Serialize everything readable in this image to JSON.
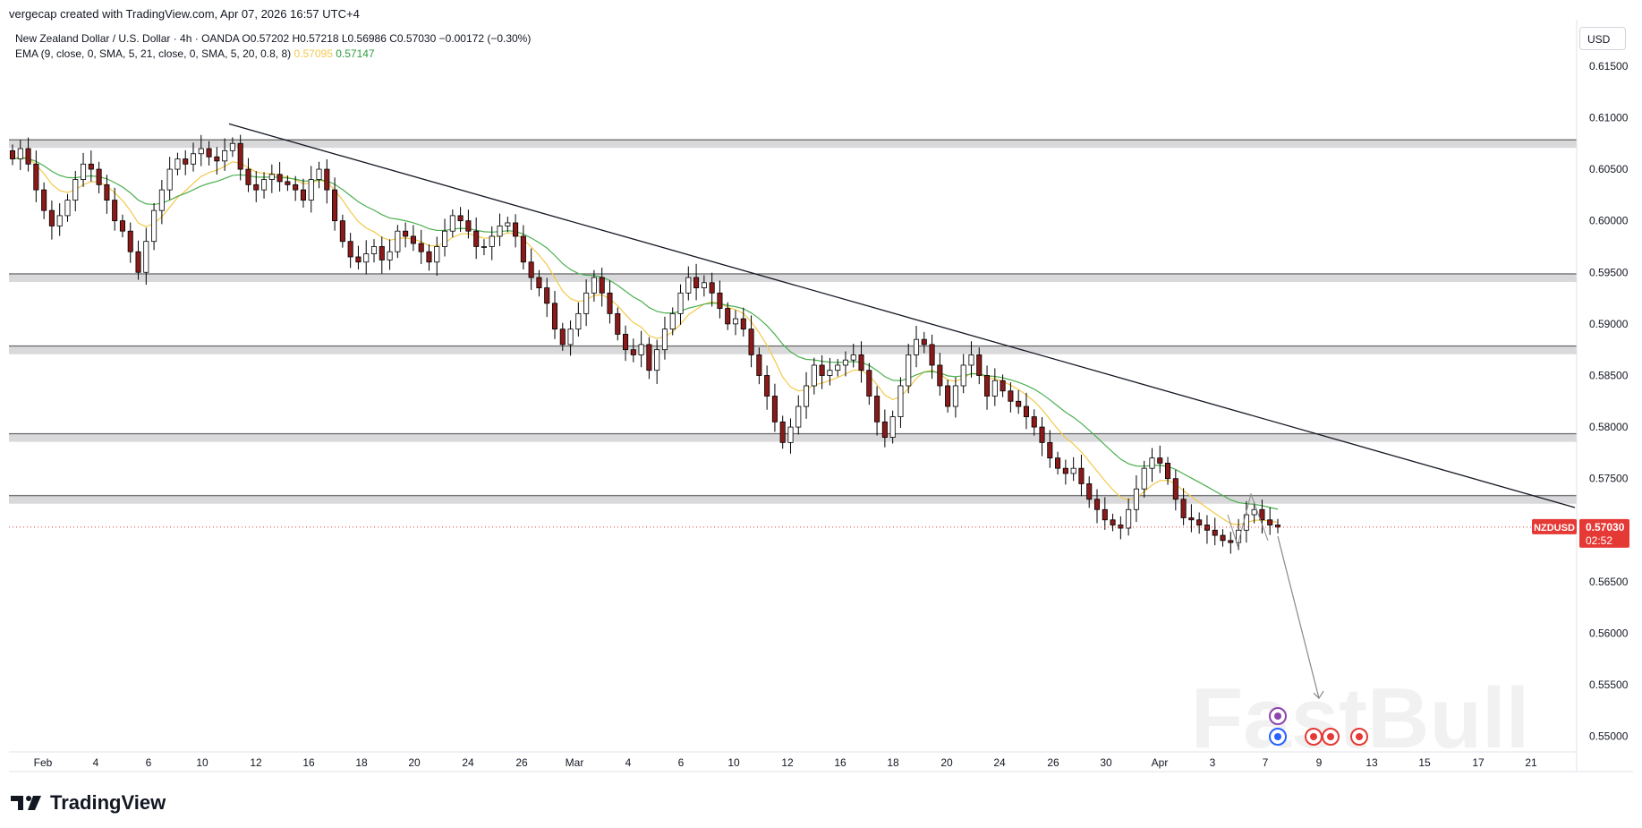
{
  "header": {
    "credit": "vergecap created with TradingView.com, Apr 07, 2026 16:57 UTC+4",
    "symbol_line": "New Zealand Dollar / U.S. Dollar · 4h · OANDA  O0.57202  H0.57218  L0.56986  C0.57030  −0.00172 (−0.30%)",
    "ema_line_prefix": "EMA (9, close, 0, SMA, 5, 21, close, 0, SMA, 5, 20, 0.8, 8)",
    "ema_fast": "0.57095",
    "ema_slow": "0.57147",
    "currency": "USD"
  },
  "footer": {
    "brand": "TradingView"
  },
  "watermark": "FastBull",
  "chart_data": {
    "type": "candlestick",
    "symbol": "NZDUSD",
    "timeframe": "4h",
    "ylim": [
      0.5485,
      0.6195
    ],
    "y_ticks": [
      "0.61500",
      "0.61000",
      "0.60500",
      "0.60000",
      "0.59500",
      "0.59000",
      "0.58500",
      "0.58000",
      "0.57500",
      "0.57000",
      "0.56500",
      "0.56000",
      "0.55500",
      "0.55000"
    ],
    "x_ticks": [
      "Feb",
      "4",
      "6",
      "10",
      "12",
      "16",
      "18",
      "20",
      "24",
      "26",
      "Mar",
      "4",
      "6",
      "10",
      "12",
      "16",
      "18",
      "20",
      "24",
      "26",
      "30",
      "Apr",
      "3",
      "7",
      "9",
      "13",
      "15",
      "17",
      "21"
    ],
    "current_price": {
      "label": "NZDUSD",
      "value": "0.57030",
      "countdown": "02:52"
    },
    "horizontal_levels": [
      0.6075,
      0.5945,
      0.5875,
      0.579,
      0.573
    ],
    "trendline": {
      "from": [
        "Feb 12",
        0.6094
      ],
      "to": [
        "Apr 21",
        0.5722
      ]
    },
    "projection_arrow": {
      "from": [
        "Apr 7",
        0.5694
      ],
      "to": [
        "Apr 9",
        0.5537
      ]
    },
    "closes": [
      0.606,
      0.607,
      0.6055,
      0.603,
      0.601,
      0.5995,
      0.6005,
      0.602,
      0.604,
      0.6055,
      0.605,
      0.6035,
      0.602,
      0.6,
      0.599,
      0.597,
      0.595,
      0.598,
      0.601,
      0.603,
      0.605,
      0.606,
      0.6055,
      0.6065,
      0.607,
      0.6062,
      0.6058,
      0.6068,
      0.6075,
      0.605,
      0.6035,
      0.603,
      0.604,
      0.6045,
      0.6038,
      0.6035,
      0.603,
      0.602,
      0.604,
      0.605,
      0.603,
      0.6,
      0.598,
      0.5965,
      0.596,
      0.5968,
      0.5975,
      0.5962,
      0.597,
      0.599,
      0.5985,
      0.5978,
      0.597,
      0.596,
      0.5975,
      0.599,
      0.6005,
      0.6,
      0.599,
      0.5975,
      0.5975,
      0.5985,
      0.5995,
      0.5998,
      0.5985,
      0.596,
      0.5945,
      0.5935,
      0.592,
      0.5895,
      0.588,
      0.5895,
      0.591,
      0.593,
      0.5945,
      0.593,
      0.591,
      0.589,
      0.5875,
      0.587,
      0.588,
      0.5855,
      0.5875,
      0.5895,
      0.591,
      0.593,
      0.5945,
      0.5935,
      0.594,
      0.593,
      0.5915,
      0.59,
      0.5905,
      0.5895,
      0.587,
      0.585,
      0.583,
      0.5805,
      0.5785,
      0.58,
      0.582,
      0.584,
      0.586,
      0.585,
      0.5855,
      0.586,
      0.5865,
      0.587,
      0.5855,
      0.583,
      0.5805,
      0.579,
      0.581,
      0.584,
      0.587,
      0.5885,
      0.588,
      0.586,
      0.584,
      0.582,
      0.584,
      0.586,
      0.587,
      0.585,
      0.583,
      0.5845,
      0.5835,
      0.5825,
      0.582,
      0.581,
      0.58,
      0.5785,
      0.577,
      0.576,
      0.5755,
      0.576,
      0.5745,
      0.573,
      0.572,
      0.571,
      0.5705,
      0.5702,
      0.572,
      0.574,
      0.576,
      0.577,
      0.5765,
      0.575,
      0.573,
      0.5712,
      0.571,
      0.5705,
      0.57,
      0.5695,
      0.569,
      0.5688,
      0.57,
      0.5715,
      0.572,
      0.571,
      0.5705,
      0.5703
    ]
  }
}
